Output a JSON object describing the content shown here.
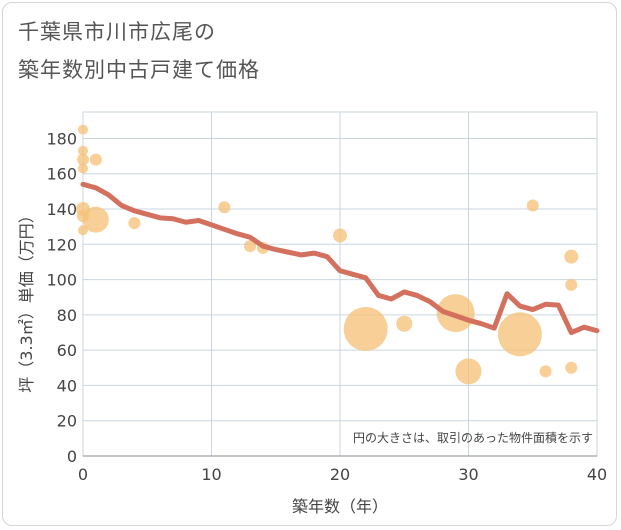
{
  "chart_data": {
    "type": "scatter",
    "title_line1": "千葉県市川市広尾の",
    "title_line2": "築年数別中古戸建て価格",
    "xlabel": "築年数（年）",
    "ylabel": "坪（3.3㎡）単価（万円）",
    "xlim": [
      0,
      40
    ],
    "ylim": [
      0,
      195
    ],
    "xticks": [
      0,
      10,
      20,
      30,
      40
    ],
    "yticks": [
      0,
      20,
      40,
      60,
      80,
      100,
      120,
      140,
      160,
      180
    ],
    "note": "円の大きさは、取引のあった物件面積を示す",
    "colors": {
      "bubble": "#f5c27a",
      "trend": "#d4705e",
      "grid": "#c9d6df"
    },
    "trend": {
      "x": [
        0,
        1,
        2,
        3,
        4,
        5,
        6,
        7,
        8,
        9,
        10,
        11,
        12,
        13,
        14,
        15,
        16,
        17,
        18,
        19,
        20,
        21,
        22,
        23,
        24,
        25,
        26,
        27,
        28,
        29,
        30,
        31,
        32,
        33,
        34,
        35,
        36,
        37,
        38,
        39,
        40
      ],
      "y": [
        154,
        152,
        148,
        142,
        139,
        137,
        135,
        134.5,
        132.5,
        133.5,
        131,
        128.5,
        126,
        124,
        119,
        117,
        115.5,
        114,
        115,
        113,
        105,
        103,
        101,
        91,
        89,
        93,
        91,
        87.5,
        82,
        79.5,
        77,
        75,
        72.5,
        92,
        85,
        83,
        86,
        85.5,
        70,
        73,
        71
      ]
    },
    "bubbles": [
      {
        "x": 0,
        "y": 185,
        "size": 5
      },
      {
        "x": 0,
        "y": 173,
        "size": 5
      },
      {
        "x": 0,
        "y": 168,
        "size": 6
      },
      {
        "x": 0,
        "y": 163,
        "size": 5
      },
      {
        "x": 1,
        "y": 168,
        "size": 6
      },
      {
        "x": 0,
        "y": 140,
        "size": 7
      },
      {
        "x": 0,
        "y": 136,
        "size": 6
      },
      {
        "x": 0,
        "y": 128,
        "size": 5
      },
      {
        "x": 1,
        "y": 134,
        "size": 13
      },
      {
        "x": 4,
        "y": 132,
        "size": 6
      },
      {
        "x": 11,
        "y": 141,
        "size": 6
      },
      {
        "x": 13,
        "y": 119,
        "size": 6
      },
      {
        "x": 14,
        "y": 118,
        "size": 6
      },
      {
        "x": 20,
        "y": 125,
        "size": 7
      },
      {
        "x": 22,
        "y": 72,
        "size": 22
      },
      {
        "x": 25,
        "y": 75,
        "size": 8
      },
      {
        "x": 29,
        "y": 81,
        "size": 19
      },
      {
        "x": 30,
        "y": 48,
        "size": 13
      },
      {
        "x": 34,
        "y": 69,
        "size": 22
      },
      {
        "x": 35,
        "y": 142,
        "size": 6
      },
      {
        "x": 36,
        "y": 48,
        "size": 6
      },
      {
        "x": 38,
        "y": 113,
        "size": 7
      },
      {
        "x": 38,
        "y": 97,
        "size": 6
      },
      {
        "x": 38,
        "y": 50,
        "size": 6
      }
    ]
  }
}
